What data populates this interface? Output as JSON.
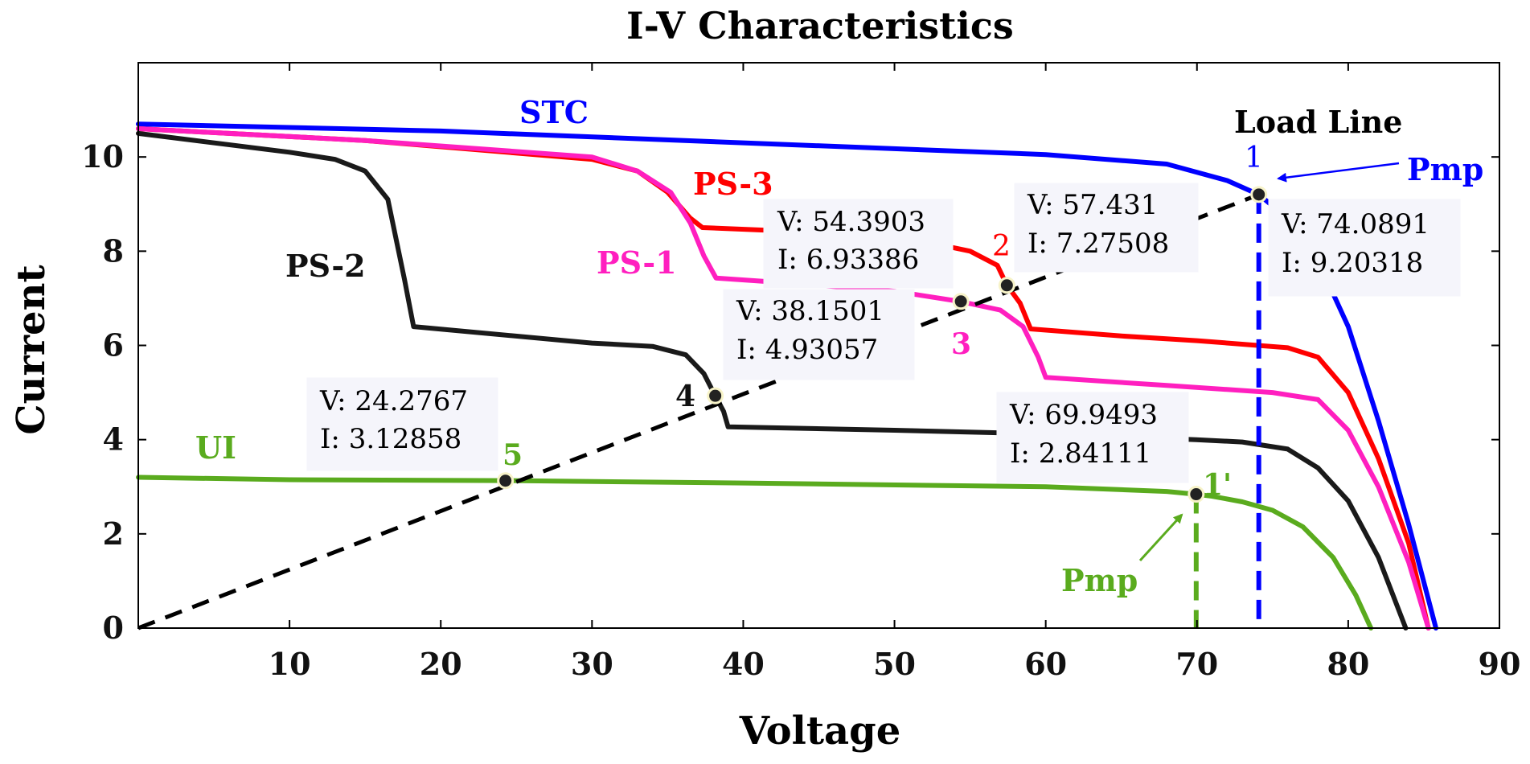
{
  "chart_data": {
    "type": "line",
    "title": "I-V Characteristics",
    "xlabel": "Voltage",
    "ylabel": "Current",
    "xlim": [
      0,
      90
    ],
    "ylim": [
      0,
      12
    ],
    "x_ticks": [
      10,
      20,
      30,
      40,
      50,
      60,
      70,
      80,
      90
    ],
    "y_ticks": [
      0,
      2,
      4,
      6,
      8,
      10
    ],
    "grid": false,
    "series": [
      {
        "name": "STC",
        "label": "STC",
        "color": "#0000ff",
        "points": [
          [
            0,
            10.7
          ],
          [
            20,
            10.55
          ],
          [
            40,
            10.3
          ],
          [
            60,
            10.05
          ],
          [
            68,
            9.85
          ],
          [
            72,
            9.5
          ],
          [
            74.09,
            9.2
          ],
          [
            76,
            8.7
          ],
          [
            78,
            7.8
          ],
          [
            80,
            6.4
          ],
          [
            82,
            4.4
          ],
          [
            84,
            2.2
          ],
          [
            85.8,
            0
          ]
        ]
      },
      {
        "name": "PS-3",
        "label": "PS-3",
        "color": "#ff0000",
        "points": [
          [
            0,
            10.6
          ],
          [
            15,
            10.35
          ],
          [
            30,
            9.95
          ],
          [
            33,
            9.7
          ],
          [
            35,
            9.25
          ],
          [
            36.5,
            8.7
          ],
          [
            37.3,
            8.5
          ],
          [
            45,
            8.4
          ],
          [
            52,
            8.2
          ],
          [
            55,
            8.0
          ],
          [
            56.8,
            7.7
          ],
          [
            57.43,
            7.28
          ],
          [
            58.3,
            6.9
          ],
          [
            59,
            6.35
          ],
          [
            65,
            6.2
          ],
          [
            70,
            6.1
          ],
          [
            76,
            5.95
          ],
          [
            78,
            5.75
          ],
          [
            80,
            5.0
          ],
          [
            82,
            3.6
          ],
          [
            84,
            1.8
          ],
          [
            85.3,
            0
          ]
        ]
      },
      {
        "name": "PS-1",
        "label": "PS-1",
        "color": "#ff1fbf",
        "points": [
          [
            0,
            10.6
          ],
          [
            15,
            10.35
          ],
          [
            30,
            10.0
          ],
          [
            33,
            9.7
          ],
          [
            35.2,
            9.25
          ],
          [
            36.5,
            8.6
          ],
          [
            37.4,
            7.9
          ],
          [
            38.2,
            7.43
          ],
          [
            44,
            7.3
          ],
          [
            50,
            7.15
          ],
          [
            54.39,
            6.93
          ],
          [
            57,
            6.75
          ],
          [
            58.5,
            6.4
          ],
          [
            59.5,
            5.75
          ],
          [
            60,
            5.32
          ],
          [
            68,
            5.15
          ],
          [
            75,
            5.0
          ],
          [
            78,
            4.85
          ],
          [
            80,
            4.2
          ],
          [
            82,
            3.0
          ],
          [
            84,
            1.4
          ],
          [
            85.3,
            0
          ]
        ]
      },
      {
        "name": "PS-2",
        "label": "PS-2",
        "color": "#1a1a1a",
        "points": [
          [
            0,
            10.5
          ],
          [
            10,
            10.1
          ],
          [
            13,
            9.95
          ],
          [
            15,
            9.7
          ],
          [
            16.5,
            9.1
          ],
          [
            17.6,
            7.4
          ],
          [
            18.2,
            6.4
          ],
          [
            30,
            6.05
          ],
          [
            34,
            5.98
          ],
          [
            36.2,
            5.8
          ],
          [
            37.4,
            5.4
          ],
          [
            38.15,
            4.93
          ],
          [
            38.7,
            4.6
          ],
          [
            39,
            4.27
          ],
          [
            50,
            4.2
          ],
          [
            60,
            4.12
          ],
          [
            69.95,
            4.0
          ],
          [
            73,
            3.95
          ],
          [
            76,
            3.8
          ],
          [
            78,
            3.4
          ],
          [
            80,
            2.7
          ],
          [
            82,
            1.5
          ],
          [
            83.8,
            0
          ]
        ]
      },
      {
        "name": "UI",
        "label": "UI",
        "color": "#5aab1e",
        "points": [
          [
            0,
            3.2
          ],
          [
            10,
            3.15
          ],
          [
            24.28,
            3.13
          ],
          [
            40,
            3.08
          ],
          [
            60,
            3.0
          ],
          [
            68,
            2.9
          ],
          [
            69.95,
            2.84
          ],
          [
            71,
            2.8
          ],
          [
            73,
            2.68
          ],
          [
            75,
            2.5
          ],
          [
            77,
            2.15
          ],
          [
            79,
            1.5
          ],
          [
            80.5,
            0.7
          ],
          [
            81.5,
            0
          ]
        ]
      },
      {
        "name": "Load Line",
        "label": "Load Line",
        "color": "#000000",
        "dashed": true,
        "points": [
          [
            0,
            0
          ],
          [
            74.09,
            9.2
          ]
        ]
      }
    ],
    "markers": [
      {
        "id": "1",
        "num": "1",
        "x": 74.0891,
        "y": 9.20318,
        "color": "#0000ff"
      },
      {
        "id": "2",
        "num": "2",
        "x": 57.431,
        "y": 7.27508,
        "color": "#ff0000"
      },
      {
        "id": "3",
        "num": "3",
        "x": 54.3903,
        "y": 6.93386,
        "color": "#ff1fbf"
      },
      {
        "id": "4",
        "num": "4",
        "x": 38.1501,
        "y": 4.93057,
        "color": "#000000"
      },
      {
        "id": "5",
        "num": "5",
        "x": 24.2767,
        "y": 3.12858,
        "color": "#5aab1e"
      },
      {
        "id": "1p",
        "num": "1'",
        "x": 69.9493,
        "y": 2.84111,
        "color": "#5aab1e"
      }
    ],
    "datatips": [
      {
        "id": "1",
        "v": "V: 74.0891",
        "i": "I: 9.20318"
      },
      {
        "id": "2",
        "v": "V: 57.431",
        "i": "I: 7.27508"
      },
      {
        "id": "3",
        "v": "V: 54.3903",
        "i": "I: 6.93386"
      },
      {
        "id": "4",
        "v": "V: 38.1501",
        "i": "I: 4.93057"
      },
      {
        "id": "5",
        "v": "V: 24.2767",
        "i": "I: 3.12858"
      },
      {
        "id": "1p",
        "v": "V: 69.9493",
        "i": "I: 2.84111"
      }
    ],
    "vlines": [
      {
        "x": 74.0891,
        "y": 9.20318,
        "color": "#0000ff"
      },
      {
        "x": 69.9493,
        "y": 2.84111,
        "color": "#5aab1e"
      }
    ],
    "pmp_annotations": [
      {
        "label": "Pmp",
        "color": "#0000ff",
        "target": "1"
      },
      {
        "label": "Pmp",
        "color": "#5aab1e",
        "target": "1p"
      }
    ]
  }
}
